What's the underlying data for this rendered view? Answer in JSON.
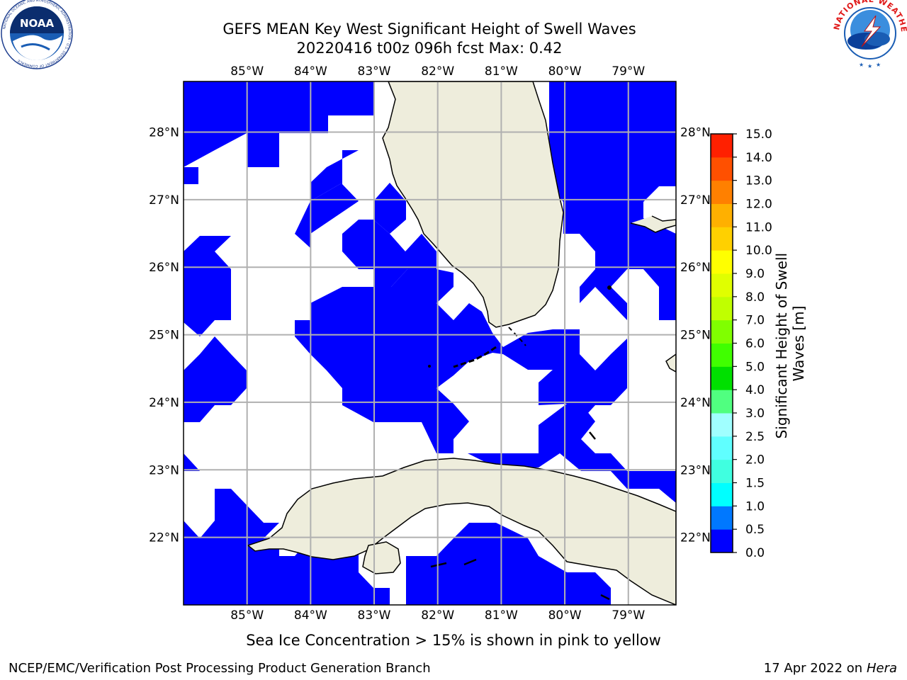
{
  "header": {
    "title_line1": "GEFS MEAN Key West Significant Height of Swell Waves",
    "title_line2": "20220416 t00z 096h fcst   Max: 0.42"
  },
  "logos": {
    "left": {
      "name": "noaa-logo",
      "text": "NOAA",
      "ring_text": "NATIONAL OCEANIC AND ATMOSPHERIC ADMINISTRATION · U.S. DEPARTMENT OF COMMERCE"
    },
    "right": {
      "name": "nws-logo",
      "ring_text": "NATIONAL WEATHER SERVICE"
    }
  },
  "map": {
    "lon_labels": [
      "85°W",
      "84°W",
      "83°W",
      "82°W",
      "81°W",
      "80°W",
      "79°W"
    ],
    "lon_values": [
      -85,
      -84,
      -83,
      -82,
      -81,
      -80,
      -79
    ],
    "lat_labels": [
      "28°N",
      "27°N",
      "26°N",
      "25°N",
      "24°N",
      "23°N",
      "22°N"
    ],
    "lat_values": [
      28,
      27,
      26,
      25,
      24,
      23,
      22
    ],
    "extent": {
      "lon_min": -86.0,
      "lon_max": -78.25,
      "lat_min": 21.0,
      "lat_max": 28.75
    },
    "colors": {
      "land": "#eeeddc",
      "water_value": "#0000ff",
      "no_data": "#ffffff",
      "grid": "#b0b0b0"
    }
  },
  "colorbar": {
    "label": "Significant Height of Swell Waves [m]",
    "ticks": [
      "0.0",
      "0.5",
      "1.0",
      "1.5",
      "2.0",
      "2.5",
      "3.0",
      "4.0",
      "5.0",
      "6.0",
      "7.0",
      "8.0",
      "9.0",
      "10.0",
      "11.0",
      "12.0",
      "13.0",
      "14.0",
      "15.0"
    ],
    "colors": [
      "#0000ff",
      "#0078ff",
      "#00ffff",
      "#40ffe0",
      "#60ffff",
      "#a0ffff",
      "#50ff80",
      "#00e000",
      "#40ff00",
      "#80ff00",
      "#c0ff00",
      "#e0ff00",
      "#ffff00",
      "#ffd000",
      "#ffb000",
      "#ff8000",
      "#ff5000",
      "#ff2000"
    ]
  },
  "subtitle": "Sea Ice Concentration > 15% is shown in pink to yellow",
  "footer": {
    "left": "NCEP/EMC/Verification Post Processing Product Generation Branch",
    "right_prefix": "17 Apr 2022 on ",
    "right_italic": "Hera"
  }
}
